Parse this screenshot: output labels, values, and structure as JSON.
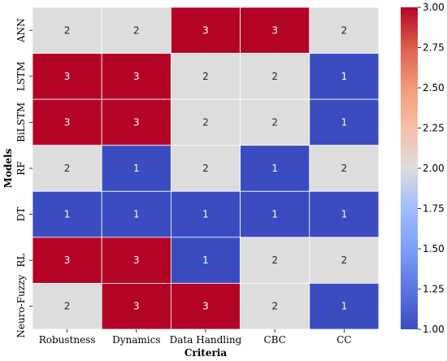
{
  "chart_data": {
    "type": "heatmap",
    "title": "",
    "xlabel": "Criteria",
    "ylabel": "Models",
    "x_categories": [
      "Robustness",
      "Dynamics",
      "Data Handling",
      "CBC",
      "CC"
    ],
    "y_categories": [
      "ANN",
      "LSTM",
      "BiLSTM",
      "RF",
      "DT",
      "RL",
      "Neuro-Fuzzy"
    ],
    "values": [
      [
        2,
        2,
        3,
        3,
        2
      ],
      [
        3,
        3,
        2,
        2,
        1
      ],
      [
        3,
        3,
        2,
        2,
        1
      ],
      [
        2,
        1,
        2,
        1,
        2
      ],
      [
        1,
        1,
        1,
        1,
        1
      ],
      [
        3,
        3,
        1,
        2,
        2
      ],
      [
        2,
        3,
        3,
        2,
        1
      ]
    ],
    "colormap": "coolwarm",
    "vmin": 1.0,
    "vmax": 3.0,
    "colorbar_ticks": [
      "1.00",
      "1.25",
      "1.50",
      "1.75",
      "2.00",
      "2.25",
      "2.50",
      "2.75",
      "3.00"
    ],
    "annotations": true,
    "colors": {
      "low": "#3b4cc0",
      "mid": "#dddddd",
      "high": "#b40426"
    }
  }
}
